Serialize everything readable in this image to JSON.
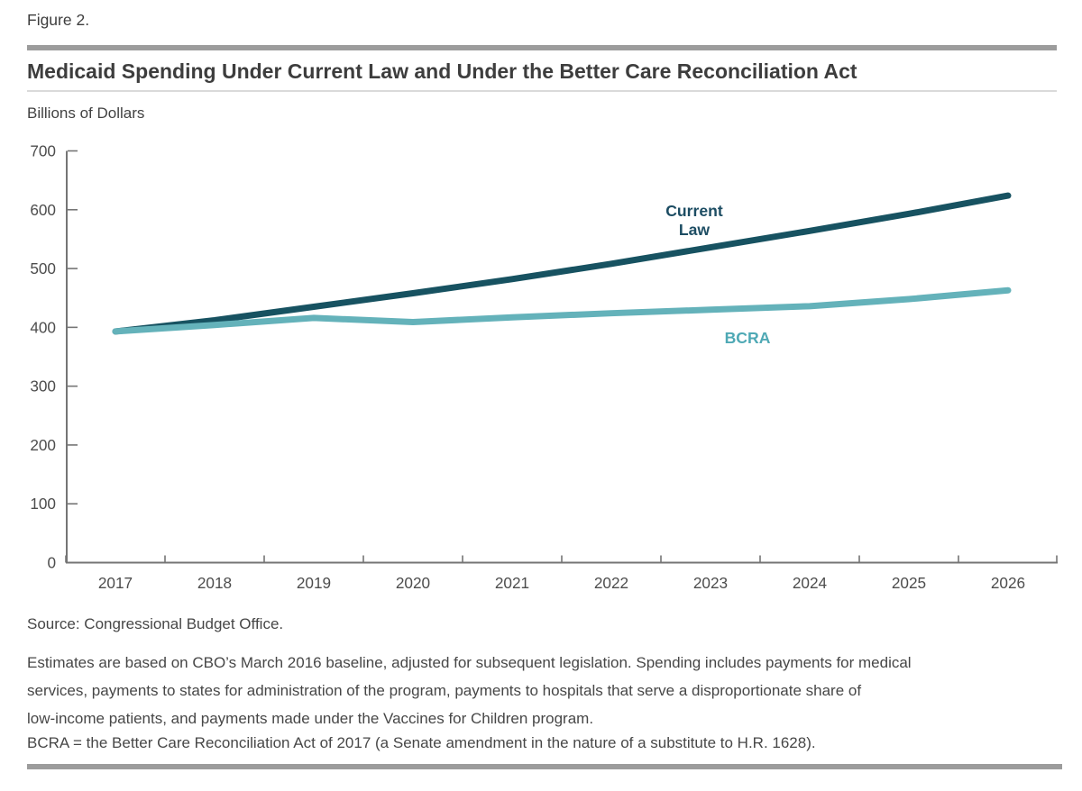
{
  "figure_label": "Figure 2.",
  "title": "Medicaid Spending Under Current Law and Under the Better Care Reconciliation Act",
  "units_label": "Billions of Dollars",
  "chart_data": {
    "type": "line",
    "x": [
      2017,
      2018,
      2019,
      2020,
      2021,
      2022,
      2023,
      2024,
      2025,
      2026
    ],
    "series": [
      {
        "name": "Current Law",
        "label_lines": [
          "Current",
          "Law"
        ],
        "color": "#175261",
        "label_color": "#1d4d63",
        "values": [
          393,
          412,
          435,
          458,
          482,
          508,
          536,
          564,
          593,
          624
        ]
      },
      {
        "name": "BCRA",
        "label_lines": [
          "BCRA"
        ],
        "color": "#64b2ba",
        "label_color": "#4fa9b5",
        "values": [
          393,
          404,
          416,
          409,
          417,
          424,
          430,
          436,
          448,
          463
        ]
      }
    ],
    "title": "Medicaid Spending Under Current Law and Under the Better Care Reconciliation Act",
    "xlabel": "",
    "ylabel": "Billions of Dollars",
    "ylim": [
      0,
      700
    ],
    "yticks": [
      0,
      100,
      200,
      300,
      400,
      500,
      600,
      700
    ],
    "grid": false,
    "legend_position": "inline-labels"
  },
  "footer": {
    "source": "Source: Congressional Budget Office.",
    "note_lines": [
      "Estimates are based on CBO’s March 2016 baseline, adjusted for subsequent legislation. Spending includes payments for medical",
      "services, payments to states for administration of the program, payments to hospitals that serve a disproportionate share of",
      "low-income patients, and payments made under the Vaccines for Children program."
    ],
    "abbreviation": "BCRA = the Better Care Reconciliation Act of 2017 (a Senate amendment in the nature of a substitute to H.R. 1628)."
  },
  "colors": {
    "axis": "#757575",
    "tick_label": "#4d4d4d",
    "rule_heavy": "#9c9c9c",
    "rule_light": "#dadada",
    "text_dark": "#3d3d3d",
    "text_footer": "#474747"
  }
}
